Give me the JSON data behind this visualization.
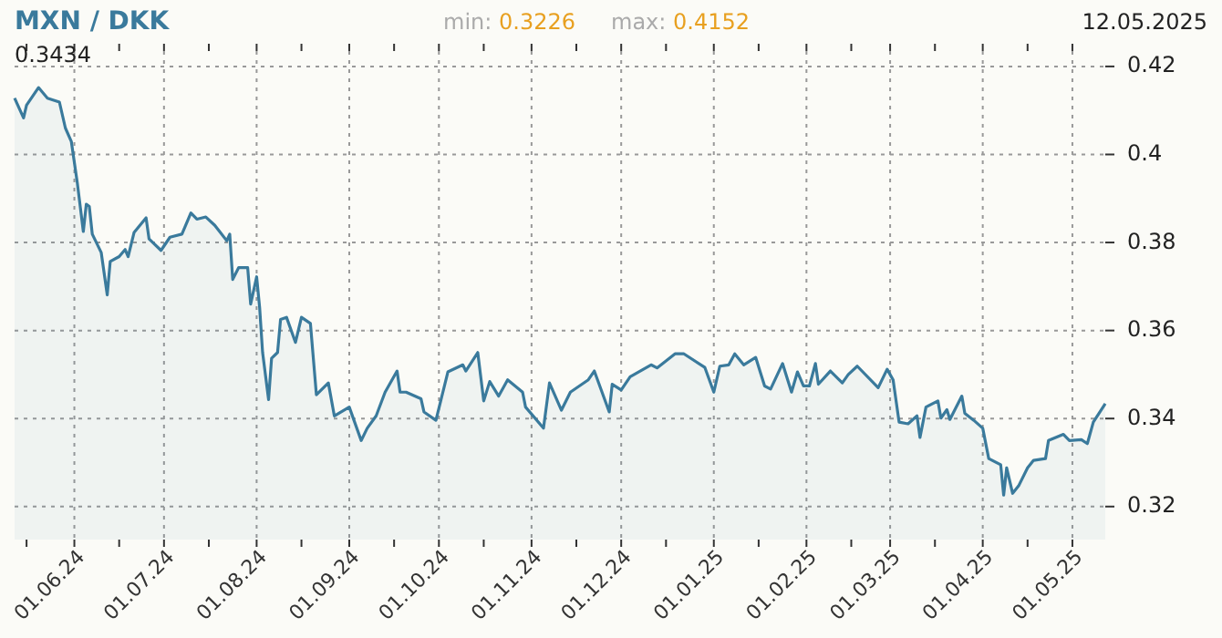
{
  "chart_data": {
    "type": "area",
    "title": "MXN / DKK",
    "annotations": [
      "min: 0.3226",
      "max: 0.4152",
      "12.05.2025",
      "0.3434"
    ],
    "xlim": [
      "2024-05-12",
      "2025-05-12"
    ],
    "xticks": [
      {
        "value": "2024-05-16",
        "label": null
      },
      {
        "value": "2024-06-01",
        "label": "01.06.24"
      },
      {
        "value": "2024-06-16",
        "label": null
      },
      {
        "value": "2024-07-01",
        "label": "01.07.24"
      },
      {
        "value": "2024-07-16",
        "label": null
      },
      {
        "value": "2024-08-01",
        "label": "01.08.24"
      },
      {
        "value": "2024-08-16",
        "label": null
      },
      {
        "value": "2024-09-01",
        "label": "01.09.24"
      },
      {
        "value": "2024-09-16",
        "label": null
      },
      {
        "value": "2024-10-01",
        "label": "01.10.24"
      },
      {
        "value": "2024-10-16",
        "label": null
      },
      {
        "value": "2024-11-01",
        "label": "01.11.24"
      },
      {
        "value": "2024-11-16",
        "label": null
      },
      {
        "value": "2024-12-01",
        "label": "01.12.24"
      },
      {
        "value": "2024-12-16",
        "label": null
      },
      {
        "value": "2025-01-01",
        "label": "01.01.25"
      },
      {
        "value": "2025-01-16",
        "label": null
      },
      {
        "value": "2025-02-01",
        "label": "01.02.25"
      },
      {
        "value": "2025-02-16",
        "label": null
      },
      {
        "value": "2025-03-01",
        "label": "01.03.25"
      },
      {
        "value": "2025-03-16",
        "label": null
      },
      {
        "value": "2025-04-01",
        "label": "01.04.25"
      },
      {
        "value": "2025-04-16",
        "label": null
      },
      {
        "value": "2025-05-01",
        "label": "01.05.25"
      }
    ],
    "ylim": [
      0.3125,
      0.4235
    ],
    "yticks": [
      0.32,
      0.34,
      0.36,
      0.38,
      0.4,
      0.42
    ],
    "grid": true,
    "x": [
      "2024-05-12",
      "2024-05-15",
      "2024-05-16",
      "2024-05-20",
      "2024-05-23",
      "2024-05-27",
      "2024-05-29",
      "2024-05-31",
      "2024-06-02",
      "2024-06-04",
      "2024-06-05",
      "2024-06-06",
      "2024-06-07",
      "2024-06-09",
      "2024-06-10",
      "2024-06-12",
      "2024-06-13",
      "2024-06-16",
      "2024-06-18",
      "2024-06-19",
      "2024-06-21",
      "2024-06-25",
      "2024-06-26",
      "2024-06-30",
      "2024-07-03",
      "2024-07-07",
      "2024-07-10",
      "2024-07-12",
      "2024-07-15",
      "2024-07-18",
      "2024-07-22",
      "2024-07-23",
      "2024-07-24",
      "2024-07-26",
      "2024-07-29",
      "2024-07-30",
      "2024-08-01",
      "2024-08-02",
      "2024-08-03",
      "2024-08-05",
      "2024-08-06",
      "2024-08-08",
      "2024-08-09",
      "2024-08-11",
      "2024-08-14",
      "2024-08-16",
      "2024-08-19",
      "2024-08-21",
      "2024-08-25",
      "2024-08-27",
      "2024-09-01",
      "2024-09-05",
      "2024-09-07",
      "2024-09-10",
      "2024-09-13",
      "2024-09-17",
      "2024-09-18",
      "2024-09-20",
      "2024-09-25",
      "2024-09-26",
      "2024-09-30",
      "2024-10-04",
      "2024-10-09",
      "2024-10-10",
      "2024-10-14",
      "2024-10-16",
      "2024-10-18",
      "2024-10-21",
      "2024-10-24",
      "2024-10-29",
      "2024-10-30",
      "2024-11-05",
      "2024-11-07",
      "2024-11-11",
      "2024-11-14",
      "2024-11-20",
      "2024-11-22",
      "2024-11-27",
      "2024-11-28",
      "2024-12-01",
      "2024-12-04",
      "2024-12-11",
      "2024-12-13",
      "2024-12-19",
      "2024-12-22",
      "2024-12-29",
      "2025-01-01",
      "2025-01-03",
      "2025-01-06",
      "2025-01-08",
      "2025-01-11",
      "2025-01-15",
      "2025-01-18",
      "2025-01-20",
      "2025-01-24",
      "2025-01-27",
      "2025-01-29",
      "2025-01-31",
      "2025-02-02",
      "2025-02-04",
      "2025-02-05",
      "2025-02-09",
      "2025-02-13",
      "2025-02-15",
      "2025-02-18",
      "2025-02-25",
      "2025-02-28",
      "2025-03-02",
      "2025-03-04",
      "2025-03-07",
      "2025-03-10",
      "2025-03-11",
      "2025-03-13",
      "2025-03-17",
      "2025-03-18",
      "2025-03-20",
      "2025-03-21",
      "2025-03-25",
      "2025-03-26",
      "2025-03-29",
      "2025-04-01",
      "2025-04-03",
      "2025-04-07",
      "2025-04-08",
      "2025-04-09",
      "2025-04-11",
      "2025-04-13",
      "2025-04-16",
      "2025-04-18",
      "2025-04-22",
      "2025-04-23",
      "2025-04-28",
      "2025-04-30",
      "2025-05-04",
      "2025-05-06",
      "2025-05-08",
      "2025-05-12"
    ],
    "series": [
      {
        "color": "#3a7a9c",
        "values": [
          0.4128,
          0.4083,
          0.4112,
          0.4152,
          0.4128,
          0.4119,
          0.406,
          0.4029,
          0.3935,
          0.3825,
          0.3887,
          0.3882,
          0.3819,
          0.3791,
          0.3777,
          0.3681,
          0.3757,
          0.3768,
          0.3784,
          0.3768,
          0.3823,
          0.3856,
          0.3808,
          0.3782,
          0.3812,
          0.3819,
          0.3867,
          0.3853,
          0.3858,
          0.3839,
          0.3804,
          0.3819,
          0.3716,
          0.3743,
          0.3743,
          0.366,
          0.3722,
          0.3653,
          0.355,
          0.3443,
          0.3537,
          0.355,
          0.3625,
          0.363,
          0.3573,
          0.363,
          0.3616,
          0.3454,
          0.3481,
          0.3406,
          0.3426,
          0.335,
          0.3378,
          0.3406,
          0.346,
          0.3508,
          0.346,
          0.346,
          0.3445,
          0.3415,
          0.3396,
          0.3506,
          0.3522,
          0.3508,
          0.355,
          0.344,
          0.3484,
          0.3451,
          0.3488,
          0.346,
          0.3426,
          0.3378,
          0.3481,
          0.3419,
          0.346,
          0.3488,
          0.3508,
          0.3415,
          0.3478,
          0.3465,
          0.3495,
          0.3522,
          0.3515,
          0.3547,
          0.3547,
          0.3516,
          0.346,
          0.3519,
          0.3522,
          0.3547,
          0.3522,
          0.3539,
          0.3474,
          0.3467,
          0.3525,
          0.346,
          0.3506,
          0.3474,
          0.3474,
          0.3525,
          0.3478,
          0.3508,
          0.3481,
          0.35,
          0.3519,
          0.347,
          0.3512,
          0.3488,
          0.3392,
          0.3388,
          0.3406,
          0.3357,
          0.3426,
          0.344,
          0.3401,
          0.342,
          0.3398,
          0.3451,
          0.3412,
          0.3396,
          0.3378,
          0.3309,
          0.3295,
          0.3226,
          0.3288,
          0.323,
          0.3247,
          0.3288,
          0.3305,
          0.3309,
          0.335,
          0.3364,
          0.335,
          0.3352,
          0.3343,
          0.3392,
          0.3434
        ]
      }
    ]
  }
}
